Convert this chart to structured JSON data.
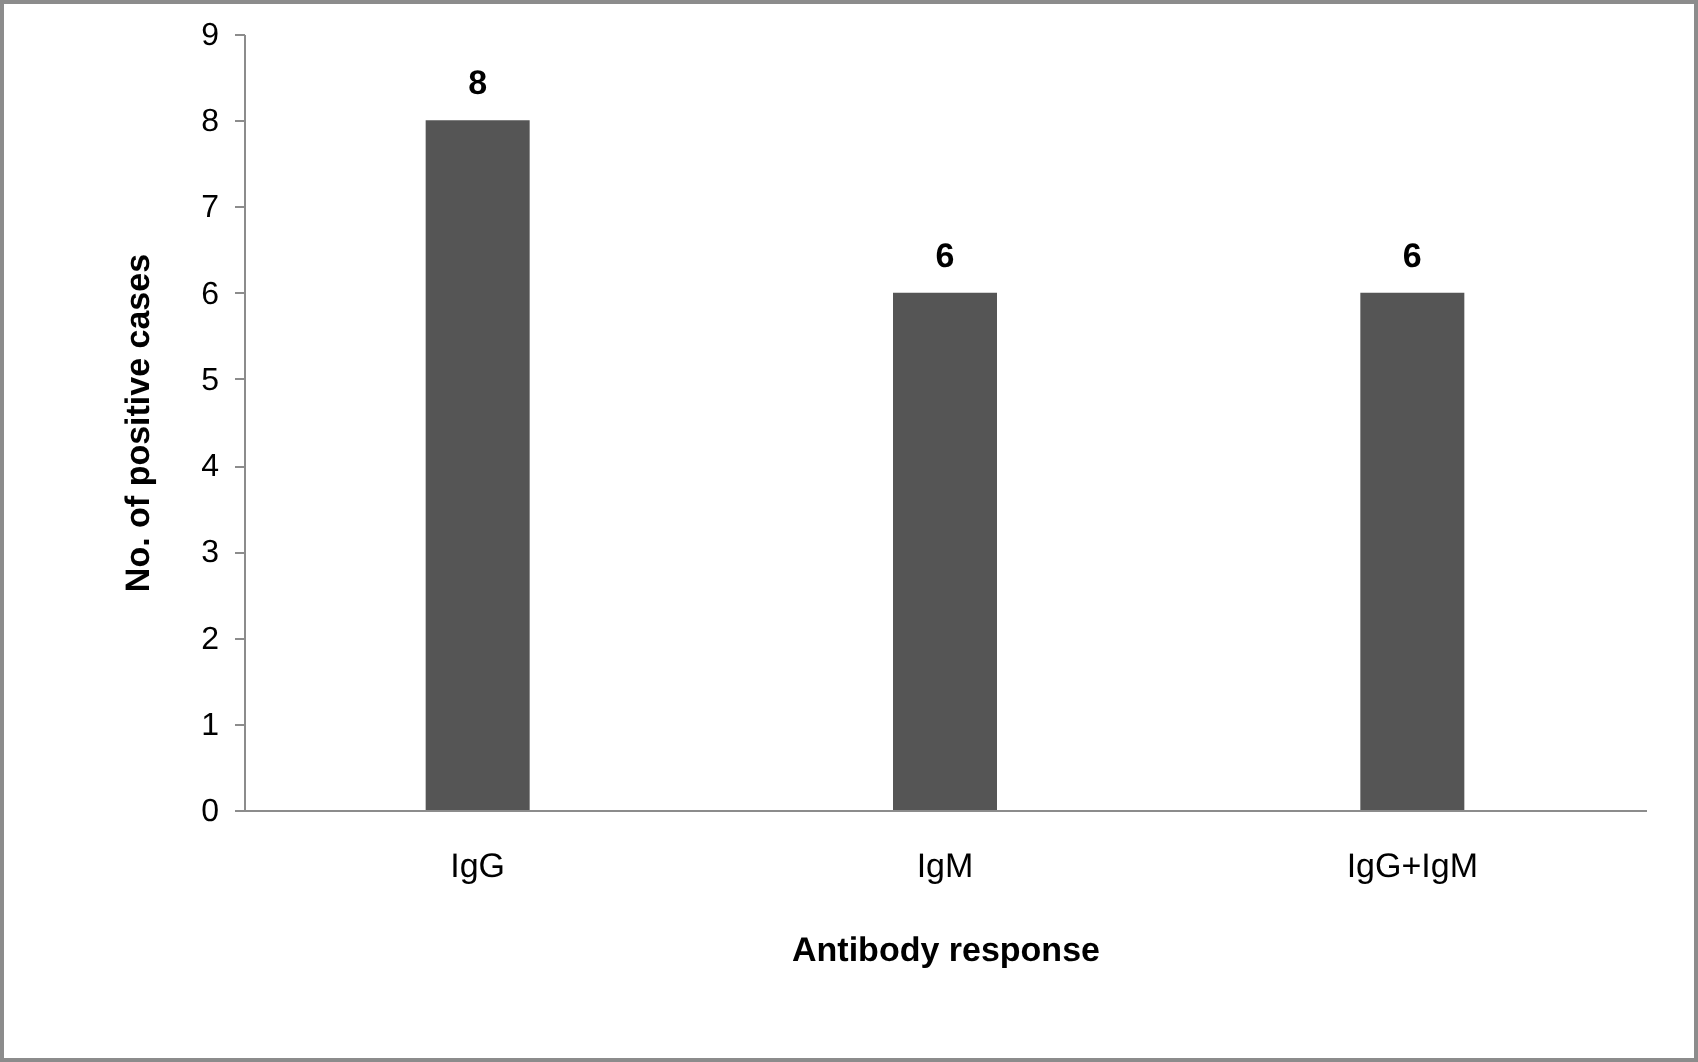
{
  "chart_data": {
    "type": "bar",
    "xlabel": "Antibody response",
    "ylabel": "No. of positive cases",
    "categories": [
      "IgG",
      "IgM",
      "IgG+IgM"
    ],
    "values": [
      8,
      6,
      6
    ],
    "color": "#555555",
    "ylim": [
      0,
      9
    ],
    "yticks": [
      0,
      1,
      2,
      3,
      4,
      5,
      6,
      7,
      8,
      9
    ],
    "grid": false,
    "data_labels": true
  }
}
